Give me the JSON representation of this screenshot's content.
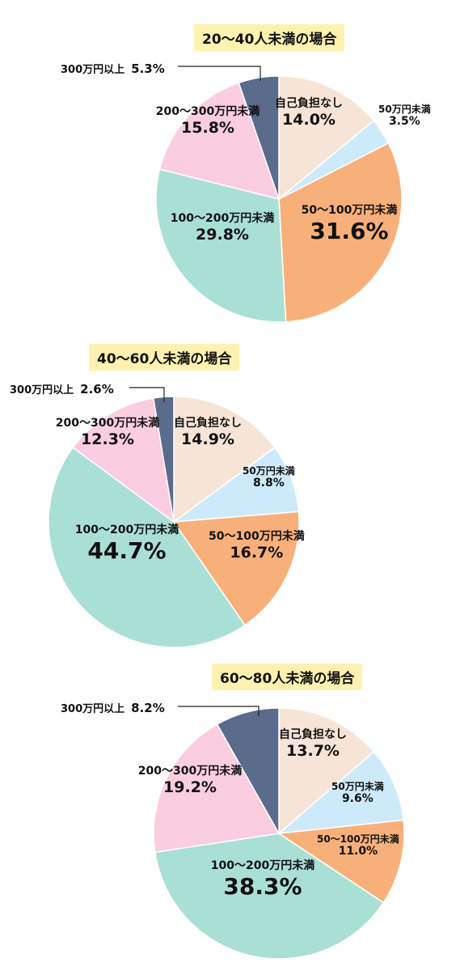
{
  "palette": {
    "self_pay_none": "#f6e4d6",
    "under_50": "#cdeafa",
    "50_to_100": "#f8b07a",
    "100_to_200": "#aadfd6",
    "200_to_300": "#fbcde1",
    "over_300": "#5a6b8c"
  },
  "chart_data": [
    {
      "type": "pie",
      "title": "20～40人未満の場合",
      "slices": [
        {
          "name": "自己負担なし",
          "pct": "14.0%",
          "value": 14.0,
          "color_key": "self_pay_none"
        },
        {
          "name": "50万円未満",
          "pct": "3.5%",
          "value": 3.5,
          "color_key": "under_50"
        },
        {
          "name": "50～100万円未満",
          "pct": "31.6%",
          "value": 31.6,
          "color_key": "50_to_100"
        },
        {
          "name": "100～200万円未満",
          "pct": "29.8%",
          "value": 29.8,
          "color_key": "100_to_200"
        },
        {
          "name": "200～300万円未満",
          "pct": "15.8%",
          "value": 15.8,
          "color_key": "200_to_300"
        },
        {
          "name": "300万円以上",
          "pct": "5.3%",
          "value": 5.3,
          "color_key": "over_300"
        }
      ]
    },
    {
      "type": "pie",
      "title": "40～60人未満の場合",
      "slices": [
        {
          "name": "自己負担なし",
          "pct": "14.9%",
          "value": 14.9,
          "color_key": "self_pay_none"
        },
        {
          "name": "50万円未満",
          "pct": "8.8%",
          "value": 8.8,
          "color_key": "under_50"
        },
        {
          "name": "50～100万円未満",
          "pct": "16.7%",
          "value": 16.7,
          "color_key": "50_to_100"
        },
        {
          "name": "100～200万円未満",
          "pct": "44.7%",
          "value": 44.7,
          "color_key": "100_to_200"
        },
        {
          "name": "200～300万円未満",
          "pct": "12.3%",
          "value": 12.3,
          "color_key": "200_to_300"
        },
        {
          "name": "300万円以上",
          "pct": "2.6%",
          "value": 2.6,
          "color_key": "over_300"
        }
      ]
    },
    {
      "type": "pie",
      "title": "60～80人未満の場合",
      "slices": [
        {
          "name": "自己負担なし",
          "pct": "13.7%",
          "value": 13.7,
          "color_key": "self_pay_none"
        },
        {
          "name": "50万円未満",
          "pct": "9.6%",
          "value": 9.6,
          "color_key": "under_50"
        },
        {
          "name": "50～100万円未満",
          "pct": "11.0%",
          "value": 11.0,
          "color_key": "50_to_100"
        },
        {
          "name": "100～200万円未満",
          "pct": "38.3%",
          "value": 38.3,
          "color_key": "100_to_200"
        },
        {
          "name": "200～300万円未満",
          "pct": "19.2%",
          "value": 19.2,
          "color_key": "200_to_300"
        },
        {
          "name": "300万円以上",
          "pct": "8.2%",
          "value": 8.2,
          "color_key": "over_300"
        }
      ]
    }
  ]
}
